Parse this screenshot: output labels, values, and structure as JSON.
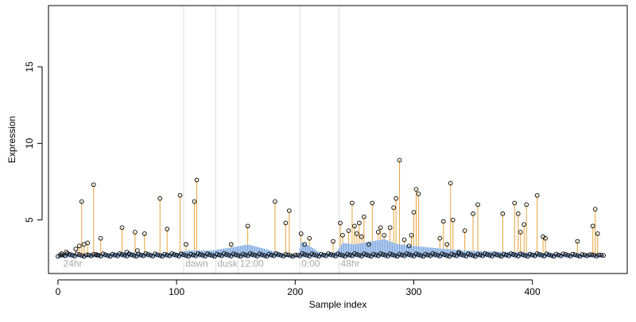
{
  "chart_data": {
    "type": "scatter",
    "xlabel": "Sample index",
    "ylabel": "Expression",
    "xlim": [
      -8,
      480
    ],
    "ylim": [
      1.5,
      19
    ],
    "xticks": [
      0,
      100,
      200,
      300,
      400
    ],
    "yticks": [
      5,
      10,
      15
    ],
    "grid": false,
    "colors": {
      "stems": "#e8a33a",
      "baseline": "#6f9fdc",
      "vlines": "#dddddd",
      "annot": "#aaaaaa",
      "points": "#000000"
    },
    "annotations": [
      {
        "x": 3,
        "label": "24hr"
      },
      {
        "x": 106,
        "label": "dawn"
      },
      {
        "x": 133,
        "label": "dusk"
      },
      {
        "x": 152,
        "label": "12:00"
      },
      {
        "x": 204,
        "label": "0:00"
      },
      {
        "x": 237,
        "label": "48hr"
      }
    ],
    "vlines": [
      106,
      133,
      152,
      204,
      237
    ],
    "baseline": [
      [
        0,
        2.65
      ],
      [
        10,
        2.9
      ],
      [
        20,
        2.7
      ],
      [
        30,
        2.75
      ],
      [
        40,
        2.8
      ],
      [
        60,
        2.9
      ],
      [
        80,
        2.8
      ],
      [
        100,
        2.85
      ],
      [
        110,
        3.0
      ],
      [
        130,
        3.0
      ],
      [
        150,
        3.25
      ],
      [
        160,
        3.4
      ],
      [
        175,
        3.1
      ],
      [
        190,
        2.75
      ],
      [
        203,
        2.7
      ],
      [
        205,
        3.55
      ],
      [
        212,
        3.3
      ],
      [
        222,
        2.8
      ],
      [
        235,
        2.9
      ],
      [
        240,
        3.5
      ],
      [
        250,
        3.4
      ],
      [
        265,
        3.6
      ],
      [
        275,
        3.75
      ],
      [
        285,
        3.45
      ],
      [
        300,
        3.3
      ],
      [
        320,
        3.15
      ],
      [
        340,
        3.0
      ],
      [
        360,
        2.95
      ],
      [
        380,
        2.9
      ],
      [
        405,
        2.85
      ],
      [
        420,
        2.8
      ],
      [
        440,
        2.75
      ],
      [
        460,
        2.7
      ]
    ],
    "peaks": [
      [
        3,
        2.8
      ],
      [
        7,
        2.9
      ],
      [
        15,
        3.1
      ],
      [
        18,
        3.3
      ],
      [
        20,
        6.2
      ],
      [
        22,
        3.4
      ],
      [
        25,
        3.5
      ],
      [
        30,
        7.3
      ],
      [
        33,
        2.7
      ],
      [
        36,
        3.8
      ],
      [
        54,
        4.5
      ],
      [
        58,
        2.9
      ],
      [
        65,
        4.2
      ],
      [
        67,
        3.0
      ],
      [
        73,
        4.1
      ],
      [
        86,
        6.4
      ],
      [
        92,
        4.4
      ],
      [
        103,
        6.6
      ],
      [
        108,
        3.4
      ],
      [
        115,
        6.2
      ],
      [
        117,
        7.6
      ],
      [
        146,
        3.4
      ],
      [
        160,
        4.6
      ],
      [
        183,
        6.2
      ],
      [
        192,
        4.8
      ],
      [
        195,
        5.6
      ],
      [
        205,
        4.1
      ],
      [
        208,
        3.4
      ],
      [
        212,
        3.8
      ],
      [
        232,
        3.6
      ],
      [
        238,
        4.8
      ],
      [
        240,
        4.0
      ],
      [
        245,
        4.3
      ],
      [
        248,
        6.1
      ],
      [
        250,
        4.6
      ],
      [
        252,
        4.1
      ],
      [
        254,
        4.8
      ],
      [
        256,
        3.9
      ],
      [
        258,
        5.2
      ],
      [
        262,
        3.4
      ],
      [
        265,
        6.1
      ],
      [
        270,
        4.2
      ],
      [
        272,
        4.5
      ],
      [
        275,
        4.0
      ],
      [
        280,
        4.5
      ],
      [
        283,
        5.8
      ],
      [
        285,
        6.4
      ],
      [
        288,
        8.9
      ],
      [
        292,
        3.7
      ],
      [
        296,
        3.3
      ],
      [
        298,
        4.0
      ],
      [
        300,
        5.5
      ],
      [
        302,
        7.0
      ],
      [
        304,
        6.7
      ],
      [
        322,
        3.8
      ],
      [
        325,
        4.9
      ],
      [
        328,
        3.4
      ],
      [
        331,
        7.4
      ],
      [
        333,
        5.0
      ],
      [
        338,
        2.9
      ],
      [
        343,
        4.3
      ],
      [
        350,
        5.4
      ],
      [
        354,
        6.0
      ],
      [
        375,
        5.4
      ],
      [
        385,
        6.1
      ],
      [
        388,
        5.4
      ],
      [
        390,
        4.2
      ],
      [
        393,
        4.7
      ],
      [
        395,
        6.0
      ],
      [
        404,
        6.6
      ],
      [
        409,
        3.9
      ],
      [
        411,
        3.8
      ],
      [
        438,
        3.6
      ],
      [
        451,
        4.6
      ],
      [
        453,
        5.7
      ],
      [
        455,
        4.1
      ]
    ]
  }
}
